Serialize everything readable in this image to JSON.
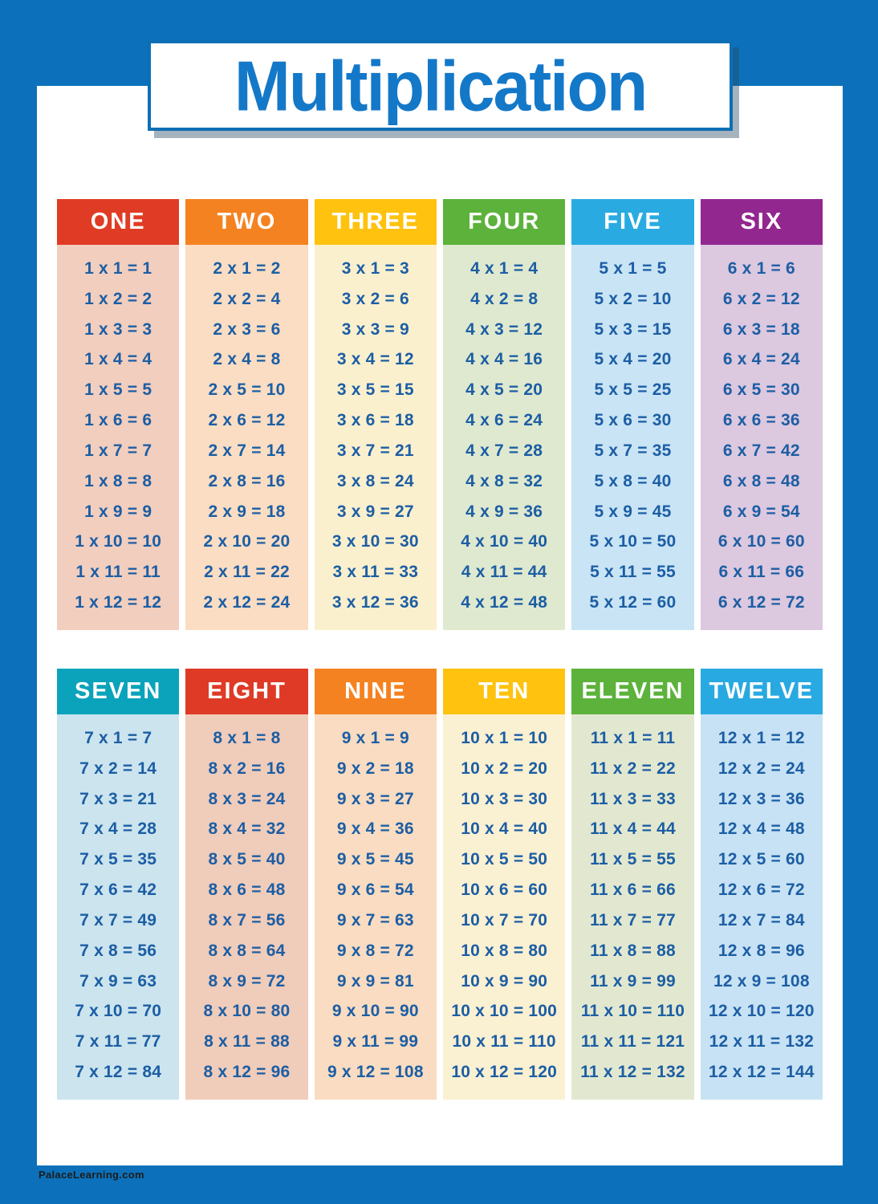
{
  "title": "Multiplication",
  "footer": "PalaceLearning.com",
  "colors": {
    "frame_blue": "#0C71BA",
    "title_text": "#1478C8",
    "fact_text": "#1C5EA4",
    "header_text": "#FFFFFF"
  },
  "tables": [
    {
      "label": "ONE",
      "header_color": "#E03C25",
      "body_color": "#F2CEBE",
      "facts": [
        "1 x 1 = 1",
        "1 x 2 = 2",
        "1 x 3 = 3",
        "1 x 4 = 4",
        "1 x 5 = 5",
        "1 x 6 = 6",
        "1 x 7 = 7",
        "1 x 8 = 8",
        "1 x 9 = 9",
        "1 x 10 = 10",
        "1 x 11 = 11",
        "1 x 12 = 12"
      ]
    },
    {
      "label": "TWO",
      "header_color": "#F58220",
      "body_color": "#FADDC3",
      "facts": [
        "2 x 1 = 2",
        "2 x 2 = 4",
        "2 x 3 = 6",
        "2 x 4 = 8",
        "2 x 5 = 10",
        "2 x 6 = 12",
        "2 x 7 = 14",
        "2 x 8 = 16",
        "2 x 9 = 18",
        "2 x 10 = 20",
        "2 x 11 = 22",
        "2 x 12 = 24"
      ]
    },
    {
      "label": "THREE",
      "header_color": "#FFC20E",
      "body_color": "#FBF0CE",
      "facts": [
        "3 x 1 = 3",
        "3 x 2 = 6",
        "3 x 3 = 9",
        "3 x 4 = 12",
        "3 x 5 = 15",
        "3 x 6 = 18",
        "3 x 7 = 21",
        "3 x 8 = 24",
        "3 x 9 = 27",
        "3 x 10 = 30",
        "3 x 11 = 33",
        "3 x 12 = 36"
      ]
    },
    {
      "label": "FOUR",
      "header_color": "#5CB23B",
      "body_color": "#DFE9CF",
      "facts": [
        "4 x 1 = 4",
        "4 x 2 = 8",
        "4 x 3 = 12",
        "4 x 4 = 16",
        "4 x 5 = 20",
        "4 x 6 = 24",
        "4 x 7 = 28",
        "4 x 8 = 32",
        "4 x 9 = 36",
        "4 x 10 = 40",
        "4 x 11 = 44",
        "4 x 12 = 48"
      ]
    },
    {
      "label": "FIVE",
      "header_color": "#29ABE2",
      "body_color": "#C9E4F5",
      "facts": [
        "5 x 1 = 5",
        "5 x 2 = 10",
        "5 x 3 = 15",
        "5 x 4 = 20",
        "5 x 5 = 25",
        "5 x 6 = 30",
        "5 x 7 = 35",
        "5 x 8 = 40",
        "5 x 9 = 45",
        "5 x 10 = 50",
        "5 x 11 = 55",
        "5 x 12 = 60"
      ]
    },
    {
      "label": "SIX",
      "header_color": "#92278F",
      "body_color": "#DCC8DF",
      "facts": [
        "6 x 1 = 6",
        "6 x 2 = 12",
        "6 x 3 = 18",
        "6 x 4 = 24",
        "6 x 5 = 30",
        "6 x 6 = 36",
        "6 x 7 = 42",
        "6 x 8 = 48",
        "6 x 9 = 54",
        "6 x 10 = 60",
        "6 x 11 = 66",
        "6 x 12 = 72"
      ]
    },
    {
      "label": "SEVEN",
      "header_color": "#0AA3BB",
      "body_color": "#CBE4EE",
      "facts": [
        "7 x 1 = 7",
        "7 x 2 = 14",
        "7 x 3 = 21",
        "7 x 4 = 28",
        "7 x 5 = 35",
        "7 x 6 = 42",
        "7 x 7 = 49",
        "7 x 8 = 56",
        "7 x 9 = 63",
        "7 x 10 = 70",
        "7 x 11 = 77",
        "7 x 12 = 84"
      ]
    },
    {
      "label": "EIGHT",
      "header_color": "#DE3A26",
      "body_color": "#F0CCBA",
      "facts": [
        "8 x 1 = 8",
        "8 x 2 = 16",
        "8 x 3 = 24",
        "8 x 4 = 32",
        "8 x 5 = 40",
        "8 x 6 = 48",
        "8 x 7 = 56",
        "8 x 8 = 64",
        "8 x 9 = 72",
        "8 x 10 = 80",
        "8 x 11 = 88",
        "8 x 12 = 96"
      ]
    },
    {
      "label": "NINE",
      "header_color": "#F58220",
      "body_color": "#F9DCC1",
      "facts": [
        "9 x 1 = 9",
        "9 x 2 = 18",
        "9 x 3 = 27",
        "9 x 4 = 36",
        "9 x 5 = 45",
        "9 x 6 = 54",
        "9 x 7 = 63",
        "9 x 8 = 72",
        "9 x 9 = 81",
        "9 x 10 = 90",
        "9 x 11 = 99",
        "9 x 12 = 108"
      ]
    },
    {
      "label": "TEN",
      "header_color": "#FEC20F",
      "body_color": "#FAF0D2",
      "facts": [
        "10 x 1 = 10",
        "10 x 2 = 20",
        "10 x 3 = 30",
        "10 x 4 = 40",
        "10 x 5 = 50",
        "10 x 6 = 60",
        "10 x 7 = 70",
        "10 x 8 = 80",
        "10 x 9 = 90",
        "10 x 10 = 100",
        "10 x 11 = 110",
        "10 x 12 = 120"
      ]
    },
    {
      "label": "ELEVEN",
      "header_color": "#5CB23B",
      "body_color": "#E2E8D0",
      "facts": [
        "11 x 1 = 11",
        "11 x 2 = 22",
        "11 x 3 = 33",
        "11 x 4 = 44",
        "11 x 5 = 55",
        "11 x 6 = 66",
        "11 x 7 = 77",
        "11 x 8 = 88",
        "11 x 9 = 99",
        "11 x 10 = 110",
        "11 x 11 = 121",
        "11 x 12 = 132"
      ]
    },
    {
      "label": "TWELVE",
      "header_color": "#29A9E1",
      "body_color": "#C7E2F4",
      "facts": [
        "12 x 1 = 12",
        "12 x 2 = 24",
        "12 x 3 = 36",
        "12 x 4 = 48",
        "12 x 5 = 60",
        "12 x 6 = 72",
        "12 x 7 = 84",
        "12 x 8 = 96",
        "12 x 9 = 108",
        "12 x 10 = 120",
        "12 x 11 = 132",
        "12 x 12 = 144"
      ]
    }
  ]
}
